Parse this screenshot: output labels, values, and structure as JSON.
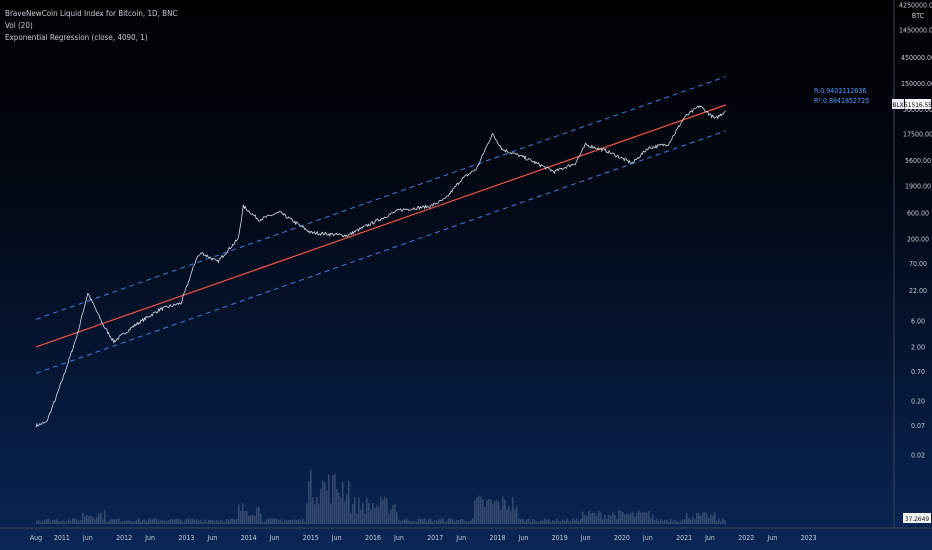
{
  "legend": {
    "title": "BraveNewCoin Liquid Index for Bitcoin, 1D, BNC",
    "vol": "Vol (20)",
    "regression": "Exponential Regression (close, 4090, 1)"
  },
  "currency_label": "BTC",
  "price_badge": {
    "symbol": "BLX",
    "value": "51516.55"
  },
  "volume_badge": "37.2649",
  "regression_stats": {
    "r": "R:0.9403112636",
    "r2": "R²:0.8841852725"
  },
  "colors": {
    "price": "#d8dce6",
    "regression": "#f05545",
    "channel": "#3d7fe0",
    "volume": "#5a6a88",
    "stats": "#4d9cff"
  },
  "chart_data": {
    "type": "line",
    "title": "BraveNewCoin Liquid Index for Bitcoin, 1D, BNC",
    "ylabel": "BTC",
    "y_scale": "log",
    "grid": false,
    "y_ticks": [
      "4250000.00",
      "1450000.00",
      "450000.00",
      "150000.00",
      "50000.00",
      "17500.00",
      "5600.00",
      "1900.00",
      "600.00",
      "200.00",
      "70.00",
      "22.00",
      "6.00",
      "2.00",
      "0.70",
      "0.20",
      "0.07",
      "0.02"
    ],
    "x_ticks": [
      "Aug",
      "2011",
      "Jun",
      "2012",
      "Jun",
      "2013",
      "Jun",
      "2014",
      "Jun",
      "2015",
      "Jun",
      "2016",
      "Jun",
      "2017",
      "Jun",
      "2018",
      "Jun",
      "2019",
      "Jun",
      "2020",
      "Jun",
      "2021",
      "Jun",
      "2022",
      "Jun",
      "2023"
    ],
    "series": [
      {
        "x": [
          "2010-08",
          "2010-10",
          "2010-12",
          "2011-02",
          "2011-04",
          "2011-06",
          "2011-09",
          "2011-11",
          "2012-03",
          "2012-08",
          "2012-12",
          "2013-03",
          "2013-04",
          "2013-07",
          "2013-11",
          "2013-12",
          "2014-03",
          "2014-07",
          "2015-01",
          "2015-08",
          "2016-01",
          "2016-06",
          "2016-12",
          "2017-03",
          "2017-06",
          "2017-09",
          "2017-12",
          "2018-02",
          "2018-06",
          "2018-12",
          "2019-04",
          "2019-06",
          "2019-10",
          "2020-03",
          "2020-06",
          "2020-10",
          "2021-01",
          "2021-04",
          "2021-07",
          "2021-09"
        ],
        "y": [
          0.07,
          0.08,
          0.25,
          0.9,
          3.5,
          20,
          5,
          2.5,
          5,
          10,
          13,
          90,
          110,
          75,
          200,
          800,
          450,
          620,
          260,
          230,
          400,
          680,
          800,
          1100,
          2500,
          4000,
          17500,
          9000,
          6500,
          3500,
          5000,
          11000,
          8500,
          5000,
          9500,
          11500,
          35000,
          58000,
          33000,
          47000
        ]
      },
      {
        "x": [
          "2010-08",
          "2021-09"
        ],
        "y": [
          2.0,
          60000
        ]
      },
      {
        "x": [
          "2010-08",
          "2021-09"
        ],
        "y": [
          6.5,
          200000
        ]
      },
      {
        "x": [
          "2010-08",
          "2021-09"
        ],
        "y": [
          0.65,
          20000
        ]
      }
    ]
  }
}
